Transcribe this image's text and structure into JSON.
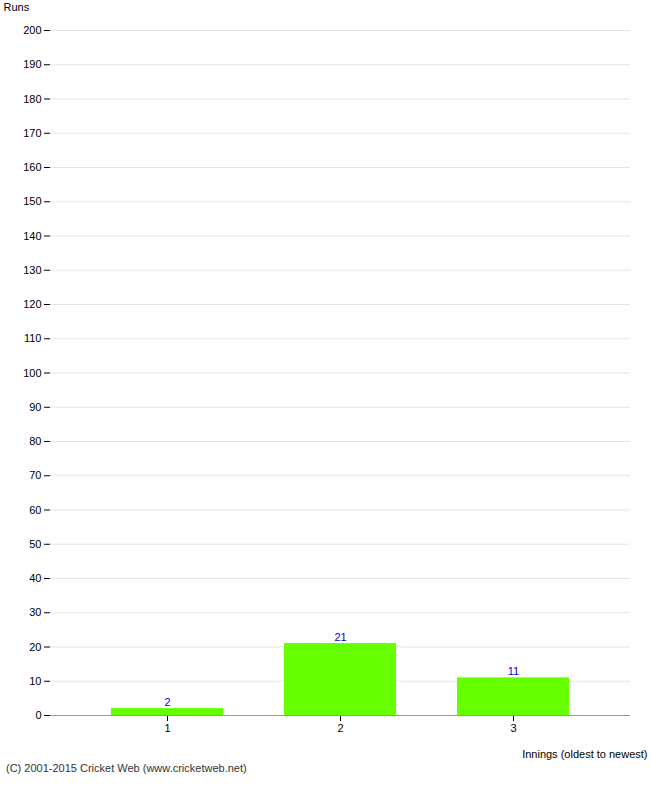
{
  "chart_data": {
    "type": "bar",
    "categories": [
      "1",
      "2",
      "3"
    ],
    "values": [
      2,
      21,
      11
    ],
    "color": "#66ff00",
    "xlabel": "Innings (oldest to newest)",
    "ylabel": "Runs",
    "ylim": [
      0,
      200
    ],
    "yticks": [
      0,
      10,
      20,
      30,
      40,
      50,
      60,
      70,
      80,
      90,
      100,
      110,
      120,
      130,
      140,
      150,
      160,
      170,
      180,
      190,
      200
    ],
    "grid": true,
    "data_labels": true,
    "caption": "(C) 2001-2015 Cricket Web (www.cricketweb.net)"
  }
}
